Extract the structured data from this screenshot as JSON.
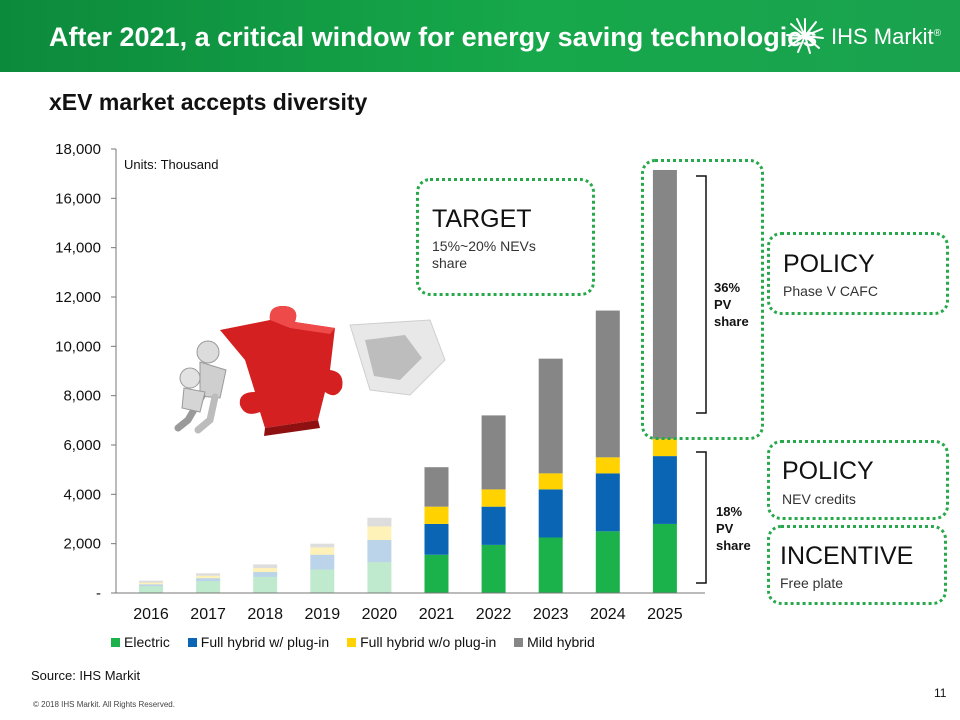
{
  "header": {
    "title": "After 2021, a critical window for energy saving technologies",
    "logo_text": "IHS Markit",
    "trademark": "®"
  },
  "subtitle": "xEV market accepts diversity",
  "units_label": "Units: Thousand",
  "callouts": {
    "target": {
      "title": "TARGET",
      "body": "15%~20% NEVs share"
    },
    "policy_cafc": {
      "title": "POLICY",
      "body": "Phase V CAFC"
    },
    "policy_nev": {
      "title": "POLICY",
      "body": "NEV credits"
    },
    "incentive": {
      "title": "INCENTIVE",
      "body": "Free plate"
    }
  },
  "shares": {
    "upper": {
      "pct": "36%",
      "l1": "PV",
      "l2": "share"
    },
    "lower": {
      "pct": "18%",
      "l1": "PV",
      "l2": "share"
    }
  },
  "source": "Source: IHS Markit",
  "copyright": "© 2018 IHS Markit. All Rights Reserved.",
  "page_number": "11",
  "colors": {
    "header_green": "#16a84a",
    "callout_border": "#27a84a",
    "electric": "#1bb24b",
    "phev": "#0a65b4",
    "hev": "#ffd200",
    "mild": "#868686"
  },
  "chart_data": {
    "type": "bar",
    "stacked": true,
    "categories": [
      "2016",
      "2017",
      "2018",
      "2019",
      "2020",
      "2021",
      "2022",
      "2023",
      "2024",
      "2025"
    ],
    "faded_categories": [
      "2016",
      "2017",
      "2018",
      "2019",
      "2020"
    ],
    "series": [
      {
        "name": "Electric",
        "color": "#1bb24b",
        "values": [
          280,
          480,
          650,
          950,
          1250,
          1550,
          1950,
          2250,
          2500,
          2800
        ]
      },
      {
        "name": "Full hybrid w/ plug-in",
        "color": "#0a65b4",
        "values": [
          70,
          120,
          200,
          600,
          900,
          1250,
          1550,
          1950,
          2350,
          2750
        ]
      },
      {
        "name": "Full hybrid w/o plug-in",
        "color": "#ffd200",
        "values": [
          70,
          100,
          160,
          300,
          550,
          700,
          700,
          650,
          650,
          700
        ]
      },
      {
        "name": "Mild hybrid",
        "color": "#868686",
        "values": [
          80,
          100,
          150,
          150,
          350,
          1600,
          3000,
          4650,
          5950,
          10900
        ]
      }
    ],
    "ytick_labels": [
      "-",
      "2,000",
      "4,000",
      "6,000",
      "8,000",
      "10,000",
      "12,000",
      "14,000",
      "16,000",
      "18,000"
    ],
    "ylim": [
      0,
      18000
    ],
    "ystep": 2000,
    "grid": false,
    "legend_position": "bottom"
  }
}
